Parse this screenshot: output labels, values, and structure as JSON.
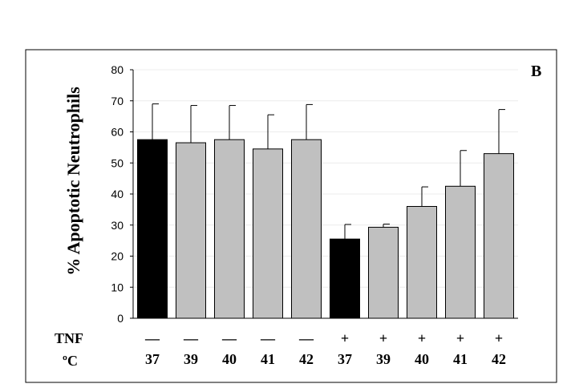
{
  "chart_data": {
    "type": "bar",
    "panel_label": "B",
    "ylabel": "% Apoptotic Neutrophils",
    "ylim": [
      0,
      80
    ],
    "yticks": [
      0,
      10,
      20,
      30,
      40,
      50,
      60,
      70,
      80
    ],
    "grid": true,
    "row_labels": {
      "tnf": "TNF",
      "temp": "ºC"
    },
    "categories": [
      {
        "tnf": "—",
        "temp": "37",
        "value": 57.5,
        "error": 11.5,
        "color": "#000000"
      },
      {
        "tnf": "—",
        "temp": "39",
        "value": 56.5,
        "error": 12.0,
        "color": "#c0c0c0"
      },
      {
        "tnf": "—",
        "temp": "40",
        "value": 57.5,
        "error": 11.0,
        "color": "#c0c0c0"
      },
      {
        "tnf": "—",
        "temp": "41",
        "value": 54.5,
        "error": 11.0,
        "color": "#c0c0c0"
      },
      {
        "tnf": "—",
        "temp": "42",
        "value": 57.5,
        "error": 11.3,
        "color": "#c0c0c0"
      },
      {
        "tnf": "+",
        "temp": "37",
        "value": 25.5,
        "error": 4.7,
        "color": "#000000"
      },
      {
        "tnf": "+",
        "temp": "39",
        "value": 29.3,
        "error": 1.0,
        "color": "#c0c0c0"
      },
      {
        "tnf": "+",
        "temp": "40",
        "value": 36.0,
        "error": 6.3,
        "color": "#c0c0c0"
      },
      {
        "tnf": "+",
        "temp": "41",
        "value": 42.5,
        "error": 11.5,
        "color": "#c0c0c0"
      },
      {
        "tnf": "+",
        "temp": "42",
        "value": 53.0,
        "error": 14.2,
        "color": "#c0c0c0"
      }
    ]
  }
}
